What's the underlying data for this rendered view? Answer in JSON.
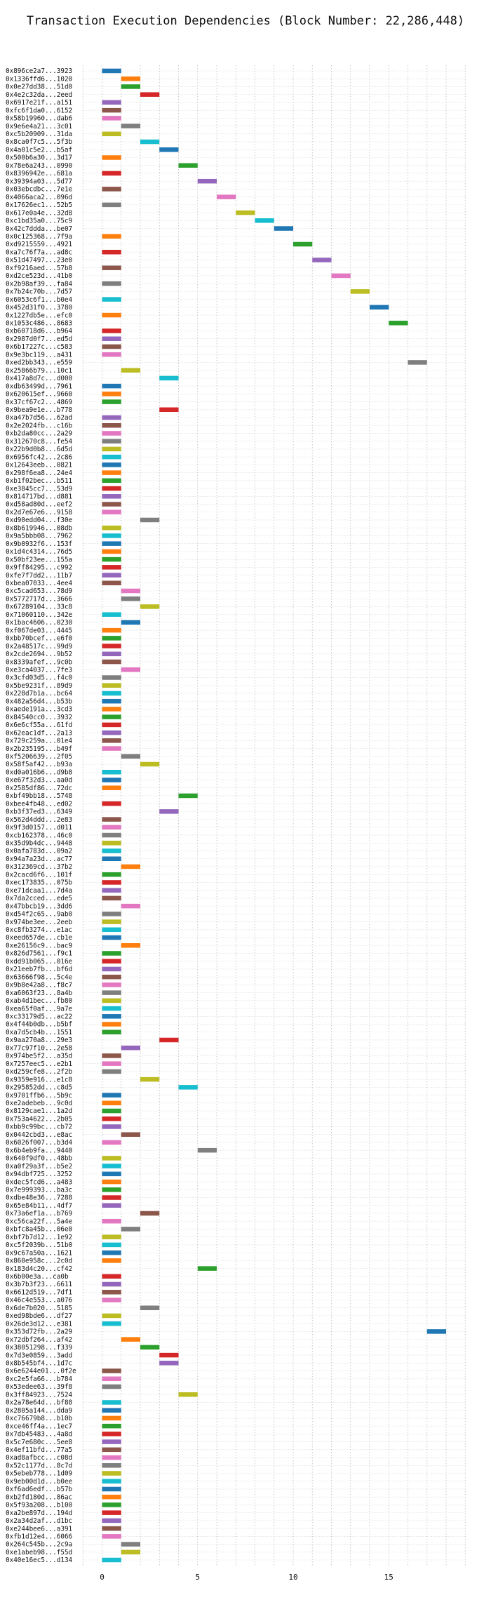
{
  "chart_data": {
    "type": "bar",
    "orientation": "horizontal",
    "title": "Transaction Execution Dependencies (Block Number: 22,286,448)",
    "xlabel": "",
    "ylabel": "",
    "xlim": [
      -1,
      19
    ],
    "xticks": [
      0,
      5,
      10,
      15
    ],
    "grid": "vertical dotted",
    "palette": [
      "#1f77b4",
      "#ff7f0e",
      "#2ca02c",
      "#d62728",
      "#9467bd",
      "#8c564b",
      "#e377c2",
      "#7f7f7f",
      "#bcbd22",
      "#17becf"
    ],
    "transactions": [
      {
        "label": "0x896ce2a7...3923",
        "start": 0,
        "end": 1
      },
      {
        "label": "0x1336ffd6...1020",
        "start": 1,
        "end": 2
      },
      {
        "label": "0x0e27dd38...51d0",
        "start": 1,
        "end": 2
      },
      {
        "label": "0x4e2c32da...2eed",
        "start": 2,
        "end": 3
      },
      {
        "label": "0x6917e21f...a151",
        "start": 0,
        "end": 1
      },
      {
        "label": "0xfc6f1da0...6152",
        "start": 0,
        "end": 1
      },
      {
        "label": "0x58b19960...dab6",
        "start": 0,
        "end": 1
      },
      {
        "label": "0x9e6e4a21...3c01",
        "start": 1,
        "end": 2
      },
      {
        "label": "0xc5b20909...31da",
        "start": 0,
        "end": 1
      },
      {
        "label": "0x8ca0f7c5...5f3b",
        "start": 2,
        "end": 3
      },
      {
        "label": "0x4a01c5e2...b5af",
        "start": 3,
        "end": 4
      },
      {
        "label": "0x500b6a30...3d17",
        "start": 0,
        "end": 1
      },
      {
        "label": "0x78e6a243...0990",
        "start": 4,
        "end": 5
      },
      {
        "label": "0x8396942e...681a",
        "start": 0,
        "end": 1
      },
      {
        "label": "0x39394a03...5d77",
        "start": 5,
        "end": 6
      },
      {
        "label": "0x03ebcdbc...7e1e",
        "start": 0,
        "end": 1
      },
      {
        "label": "0x4066aca2...096d",
        "start": 6,
        "end": 7
      },
      {
        "label": "0x17626ec1...52b5",
        "start": 0,
        "end": 1
      },
      {
        "label": "0x617e0a4e...32d8",
        "start": 7,
        "end": 8
      },
      {
        "label": "0xc1bd35a0...75c9",
        "start": 8,
        "end": 9
      },
      {
        "label": "0x42c7ddda...be07",
        "start": 9,
        "end": 10
      },
      {
        "label": "0x0c125368...7f9a",
        "start": 0,
        "end": 1
      },
      {
        "label": "0xd9215559...4921",
        "start": 10,
        "end": 11
      },
      {
        "label": "0xa7c76f7a...ad8c",
        "start": 0,
        "end": 1
      },
      {
        "label": "0x51d47497...23e0",
        "start": 11,
        "end": 12
      },
      {
        "label": "0xf9216aed...57b8",
        "start": 0,
        "end": 1
      },
      {
        "label": "0xd2ce523d...41b0",
        "start": 12,
        "end": 13
      },
      {
        "label": "0x2b98af39...fa84",
        "start": 0,
        "end": 1
      },
      {
        "label": "0x7b24c70b...7d57",
        "start": 13,
        "end": 14
      },
      {
        "label": "0x6053c6f1...b0e4",
        "start": 0,
        "end": 1
      },
      {
        "label": "0x452d31f0...3780",
        "start": 14,
        "end": 15
      },
      {
        "label": "0x1227db5e...efc0",
        "start": 0,
        "end": 1
      },
      {
        "label": "0x1053c486...8683",
        "start": 15,
        "end": 16
      },
      {
        "label": "0xb60718d6...b964",
        "start": 0,
        "end": 1
      },
      {
        "label": "0x2987d0f7...ed5d",
        "start": 0,
        "end": 1
      },
      {
        "label": "0x6b17227c...c583",
        "start": 0,
        "end": 1
      },
      {
        "label": "0x9e3bc119...a431",
        "start": 0,
        "end": 1
      },
      {
        "label": "0xed2bb343...e559",
        "start": 16,
        "end": 17
      },
      {
        "label": "0x25866b79...10c1",
        "start": 1,
        "end": 2
      },
      {
        "label": "0x417a8d7c...d000",
        "start": 3,
        "end": 4
      },
      {
        "label": "0xdb63499d...7961",
        "start": 0,
        "end": 1
      },
      {
        "label": "0x620615ef...9660",
        "start": 0,
        "end": 1
      },
      {
        "label": "0x37cf67c2...4869",
        "start": 0,
        "end": 1
      },
      {
        "label": "0x9bea9e1e...b778",
        "start": 3,
        "end": 4
      },
      {
        "label": "0xa47b7d56...62ad",
        "start": 0,
        "end": 1
      },
      {
        "label": "0x2e2024fb...c16b",
        "start": 0,
        "end": 1
      },
      {
        "label": "0xb2da80cc...2a29",
        "start": 0,
        "end": 1
      },
      {
        "label": "0x312670c8...fe54",
        "start": 0,
        "end": 1
      },
      {
        "label": "0x22b9d0b8...6d5d",
        "start": 0,
        "end": 1
      },
      {
        "label": "0x6956fc42...2c86",
        "start": 0,
        "end": 1
      },
      {
        "label": "0x12643eeb...0821",
        "start": 0,
        "end": 1
      },
      {
        "label": "0x298f6ea8...24e4",
        "start": 0,
        "end": 1
      },
      {
        "label": "0xb1f02bec...b511",
        "start": 0,
        "end": 1
      },
      {
        "label": "0xe3845cc7...53d9",
        "start": 0,
        "end": 1
      },
      {
        "label": "0x814717bd...d881",
        "start": 0,
        "end": 1
      },
      {
        "label": "0xd58ad80d...eef2",
        "start": 0,
        "end": 1
      },
      {
        "label": "0x2d7e67e6...9158",
        "start": 0,
        "end": 1
      },
      {
        "label": "0xd90edd04...f30e",
        "start": 2,
        "end": 3
      },
      {
        "label": "0x8b619946...08db",
        "start": 0,
        "end": 1
      },
      {
        "label": "0x9a5bbb08...7962",
        "start": 0,
        "end": 1
      },
      {
        "label": "0x9b0932f6...153f",
        "start": 0,
        "end": 1
      },
      {
        "label": "0x1d4c4314...76d5",
        "start": 0,
        "end": 1
      },
      {
        "label": "0x50bf23ee...155a",
        "start": 0,
        "end": 1
      },
      {
        "label": "0x9ff84295...c992",
        "start": 0,
        "end": 1
      },
      {
        "label": "0xfe7f7dd2...11b7",
        "start": 0,
        "end": 1
      },
      {
        "label": "0xbea07033...4ee4",
        "start": 0,
        "end": 1
      },
      {
        "label": "0xc5cad653...78d9",
        "start": 1,
        "end": 2
      },
      {
        "label": "0x5772717d...3666",
        "start": 1,
        "end": 2
      },
      {
        "label": "0x67289104...33c8",
        "start": 2,
        "end": 3
      },
      {
        "label": "0x71060110...342e",
        "start": 0,
        "end": 1
      },
      {
        "label": "0x1bac4606...0230",
        "start": 1,
        "end": 2
      },
      {
        "label": "0xf067de03...4445",
        "start": 0,
        "end": 1
      },
      {
        "label": "0xbb70bcef...e6f0",
        "start": 0,
        "end": 1
      },
      {
        "label": "0x2a48517c...99d9",
        "start": 0,
        "end": 1
      },
      {
        "label": "0x2cde2694...9b52",
        "start": 0,
        "end": 1
      },
      {
        "label": "0x8339afef...9c0b",
        "start": 0,
        "end": 1
      },
      {
        "label": "0xe3ca4037...7fe3",
        "start": 1,
        "end": 2
      },
      {
        "label": "0x3cfd03d5...f4c0",
        "start": 0,
        "end": 1
      },
      {
        "label": "0x5be9231f...89d9",
        "start": 0,
        "end": 1
      },
      {
        "label": "0x228d7b1a...bc64",
        "start": 0,
        "end": 1
      },
      {
        "label": "0x482a56d4...b53b",
        "start": 0,
        "end": 1
      },
      {
        "label": "0xaede191a...3cd3",
        "start": 0,
        "end": 1
      },
      {
        "label": "0x84540cc0...3932",
        "start": 0,
        "end": 1
      },
      {
        "label": "0x6e6cf55a...61fd",
        "start": 0,
        "end": 1
      },
      {
        "label": "0x62eac1df...2a13",
        "start": 0,
        "end": 1
      },
      {
        "label": "0x729c259a...01e4",
        "start": 0,
        "end": 1
      },
      {
        "label": "0x2b235195...b49f",
        "start": 0,
        "end": 1
      },
      {
        "label": "0xf5206639...2f05",
        "start": 1,
        "end": 2
      },
      {
        "label": "0x58f5af42...b93a",
        "start": 2,
        "end": 3
      },
      {
        "label": "0xd0a016b6...d9b8",
        "start": 0,
        "end": 1
      },
      {
        "label": "0xe67f32d3...aa0d",
        "start": 0,
        "end": 1
      },
      {
        "label": "0x2585df86...72dc",
        "start": 0,
        "end": 1
      },
      {
        "label": "0xbf49bb18...5748",
        "start": 4,
        "end": 5
      },
      {
        "label": "0xbee4fb48...ed02",
        "start": 0,
        "end": 1
      },
      {
        "label": "0xb3f37ed3...6349",
        "start": 3,
        "end": 4
      },
      {
        "label": "0x562d4ddd...2e83",
        "start": 0,
        "end": 1
      },
      {
        "label": "0x9f3d0157...d011",
        "start": 0,
        "end": 1
      },
      {
        "label": "0xcb162378...46c0",
        "start": 0,
        "end": 1
      },
      {
        "label": "0x35d9b4dc...9448",
        "start": 0,
        "end": 1
      },
      {
        "label": "0x0afa783d...09a2",
        "start": 0,
        "end": 1
      },
      {
        "label": "0x94a7a23d...ac77",
        "start": 0,
        "end": 1
      },
      {
        "label": "0x312369cd...37b2",
        "start": 1,
        "end": 2
      },
      {
        "label": "0x2cacd6f6...101f",
        "start": 0,
        "end": 1
      },
      {
        "label": "0xec173835...075b",
        "start": 0,
        "end": 1
      },
      {
        "label": "0xe71dcaa1...7d4a",
        "start": 0,
        "end": 1
      },
      {
        "label": "0x7da2cced...ede5",
        "start": 0,
        "end": 1
      },
      {
        "label": "0x47bbcb19...3dd6",
        "start": 1,
        "end": 2
      },
      {
        "label": "0xd54f2c65...9ab0",
        "start": 0,
        "end": 1
      },
      {
        "label": "0x974be3ee...2eeb",
        "start": 0,
        "end": 1
      },
      {
        "label": "0xc8fb3274...e1ac",
        "start": 0,
        "end": 1
      },
      {
        "label": "0xeed657de...cb1e",
        "start": 0,
        "end": 1
      },
      {
        "label": "0xe26156c9...bac9",
        "start": 1,
        "end": 2
      },
      {
        "label": "0x826d7561...f9c1",
        "start": 0,
        "end": 1
      },
      {
        "label": "0xdd91b065...016e",
        "start": 0,
        "end": 1
      },
      {
        "label": "0x21eeb7fb...bf6d",
        "start": 0,
        "end": 1
      },
      {
        "label": "0x63666f98...5c4e",
        "start": 0,
        "end": 1
      },
      {
        "label": "0x9b8e42a8...f8c7",
        "start": 0,
        "end": 1
      },
      {
        "label": "0xa6063f23...8a4b",
        "start": 0,
        "end": 1
      },
      {
        "label": "0xab4d1bec...fb80",
        "start": 0,
        "end": 1
      },
      {
        "label": "0xea65f0af...9a7e",
        "start": 0,
        "end": 1
      },
      {
        "label": "0xc33179d5...ac22",
        "start": 0,
        "end": 1
      },
      {
        "label": "0x4f44b0db...b5bf",
        "start": 0,
        "end": 1
      },
      {
        "label": "0xa7d5cb4b...1551",
        "start": 0,
        "end": 1
      },
      {
        "label": "0x9aa270a8...29e3",
        "start": 3,
        "end": 4
      },
      {
        "label": "0x77c97f10...2e58",
        "start": 1,
        "end": 2
      },
      {
        "label": "0x974be5f2...a35d",
        "start": 0,
        "end": 1
      },
      {
        "label": "0x7257eec5...e2b1",
        "start": 0,
        "end": 1
      },
      {
        "label": "0xd259cfe8...2f2b",
        "start": 0,
        "end": 1
      },
      {
        "label": "0x9359e916...e1c8",
        "start": 2,
        "end": 3
      },
      {
        "label": "0x295852dd...c8d5",
        "start": 4,
        "end": 5
      },
      {
        "label": "0x9701ffb6...5b9c",
        "start": 0,
        "end": 1
      },
      {
        "label": "0xe2adebeb...9c0d",
        "start": 0,
        "end": 1
      },
      {
        "label": "0x8129cae1...1a2d",
        "start": 0,
        "end": 1
      },
      {
        "label": "0x753a4622...2b05",
        "start": 0,
        "end": 1
      },
      {
        "label": "0xbb9c99bc...cb72",
        "start": 0,
        "end": 1
      },
      {
        "label": "0x0442cbd3...e8ac",
        "start": 1,
        "end": 2
      },
      {
        "label": "0x6026f007...b3d4",
        "start": 0,
        "end": 1
      },
      {
        "label": "0x6b4eb9fa...9440",
        "start": 5,
        "end": 6
      },
      {
        "label": "0x640f9df0...48bb",
        "start": 0,
        "end": 1
      },
      {
        "label": "0xa0f29a3f...b5e2",
        "start": 0,
        "end": 1
      },
      {
        "label": "0x94dbf725...3252",
        "start": 0,
        "end": 1
      },
      {
        "label": "0xdec5fcd6...a483",
        "start": 0,
        "end": 1
      },
      {
        "label": "0x7e999393...ba3c",
        "start": 0,
        "end": 1
      },
      {
        "label": "0xdbe48e36...7288",
        "start": 0,
        "end": 1
      },
      {
        "label": "0x65e84b11...4df7",
        "start": 0,
        "end": 1
      },
      {
        "label": "0x73a6ef1a...b769",
        "start": 2,
        "end": 3
      },
      {
        "label": "0xc56ca22f...5a4e",
        "start": 0,
        "end": 1
      },
      {
        "label": "0xbfc8a45b...06e0",
        "start": 1,
        "end": 2
      },
      {
        "label": "0xbf7b7d12...1e92",
        "start": 0,
        "end": 1
      },
      {
        "label": "0xc5f2039b...51b0",
        "start": 0,
        "end": 1
      },
      {
        "label": "0x9c67a50a...1621",
        "start": 0,
        "end": 1
      },
      {
        "label": "0x860e958c...2c0d",
        "start": 0,
        "end": 1
      },
      {
        "label": "0x183d4c20...cf42",
        "start": 5,
        "end": 6
      },
      {
        "label": "0x6b00e3a...ca0b",
        "start": 0,
        "end": 1
      },
      {
        "label": "0x3b7b3f23...6611",
        "start": 0,
        "end": 1
      },
      {
        "label": "0x6612d519...7df1",
        "start": 0,
        "end": 1
      },
      {
        "label": "0x46c4e553...a076",
        "start": 0,
        "end": 1
      },
      {
        "label": "0x6de7b020...5185",
        "start": 2,
        "end": 3
      },
      {
        "label": "0xed98bde6...df27",
        "start": 0,
        "end": 1
      },
      {
        "label": "0x26de3d12...e381",
        "start": 0,
        "end": 1
      },
      {
        "label": "0x353d72fb...2a29",
        "start": 17,
        "end": 18
      },
      {
        "label": "0x72dbf264...af42",
        "start": 1,
        "end": 2
      },
      {
        "label": "0x38051298...f339",
        "start": 2,
        "end": 3
      },
      {
        "label": "0x7d3e0859...3add",
        "start": 3,
        "end": 4
      },
      {
        "label": "0x8b545bf4...1d7c",
        "start": 3,
        "end": 4
      },
      {
        "label": "0x6e6244e01...0f2e",
        "start": 0,
        "end": 1
      },
      {
        "label": "0xc2e5fa66...b784",
        "start": 0,
        "end": 1
      },
      {
        "label": "0x53edee63...39f8",
        "start": 0,
        "end": 1
      },
      {
        "label": "0x3ff84923...7524",
        "start": 4,
        "end": 5
      },
      {
        "label": "0x2a78e64d...bf88",
        "start": 0,
        "end": 1
      },
      {
        "label": "0x2805a144...dda9",
        "start": 0,
        "end": 1
      },
      {
        "label": "0xc76679b8...b10b",
        "start": 0,
        "end": 1
      },
      {
        "label": "0xce46ff4a...1ec7",
        "start": 0,
        "end": 1
      },
      {
        "label": "0x7db45483...4a8d",
        "start": 0,
        "end": 1
      },
      {
        "label": "0x5c7e680c...5ee8",
        "start": 0,
        "end": 1
      },
      {
        "label": "0x4ef11bfd...77a5",
        "start": 0,
        "end": 1
      },
      {
        "label": "0xad8afbcc...c08d",
        "start": 0,
        "end": 1
      },
      {
        "label": "0x52c1177d...8c7d",
        "start": 0,
        "end": 1
      },
      {
        "label": "0x5ebeb778...1d09",
        "start": 0,
        "end": 1
      },
      {
        "label": "0x9eb00d1d...b0ee",
        "start": 0,
        "end": 1
      },
      {
        "label": "0xf6ad6edf...b57b",
        "start": 0,
        "end": 1
      },
      {
        "label": "0xb2fd180d...86ac",
        "start": 0,
        "end": 1
      },
      {
        "label": "0x5f93a208...b100",
        "start": 0,
        "end": 1
      },
      {
        "label": "0xa2be897d...194d",
        "start": 0,
        "end": 1
      },
      {
        "label": "0x2a34d2af...d1bc",
        "start": 0,
        "end": 1
      },
      {
        "label": "0xe244bee6...a391",
        "start": 0,
        "end": 1
      },
      {
        "label": "0xfb1d12e4...6066",
        "start": 0,
        "end": 1
      },
      {
        "label": "0x264c545b...2c9a",
        "start": 1,
        "end": 2
      },
      {
        "label": "0xe1abeb98...f55d",
        "start": 1,
        "end": 2
      },
      {
        "label": "0x40e16ec5...d134",
        "start": 0,
        "end": 1
      }
    ]
  }
}
